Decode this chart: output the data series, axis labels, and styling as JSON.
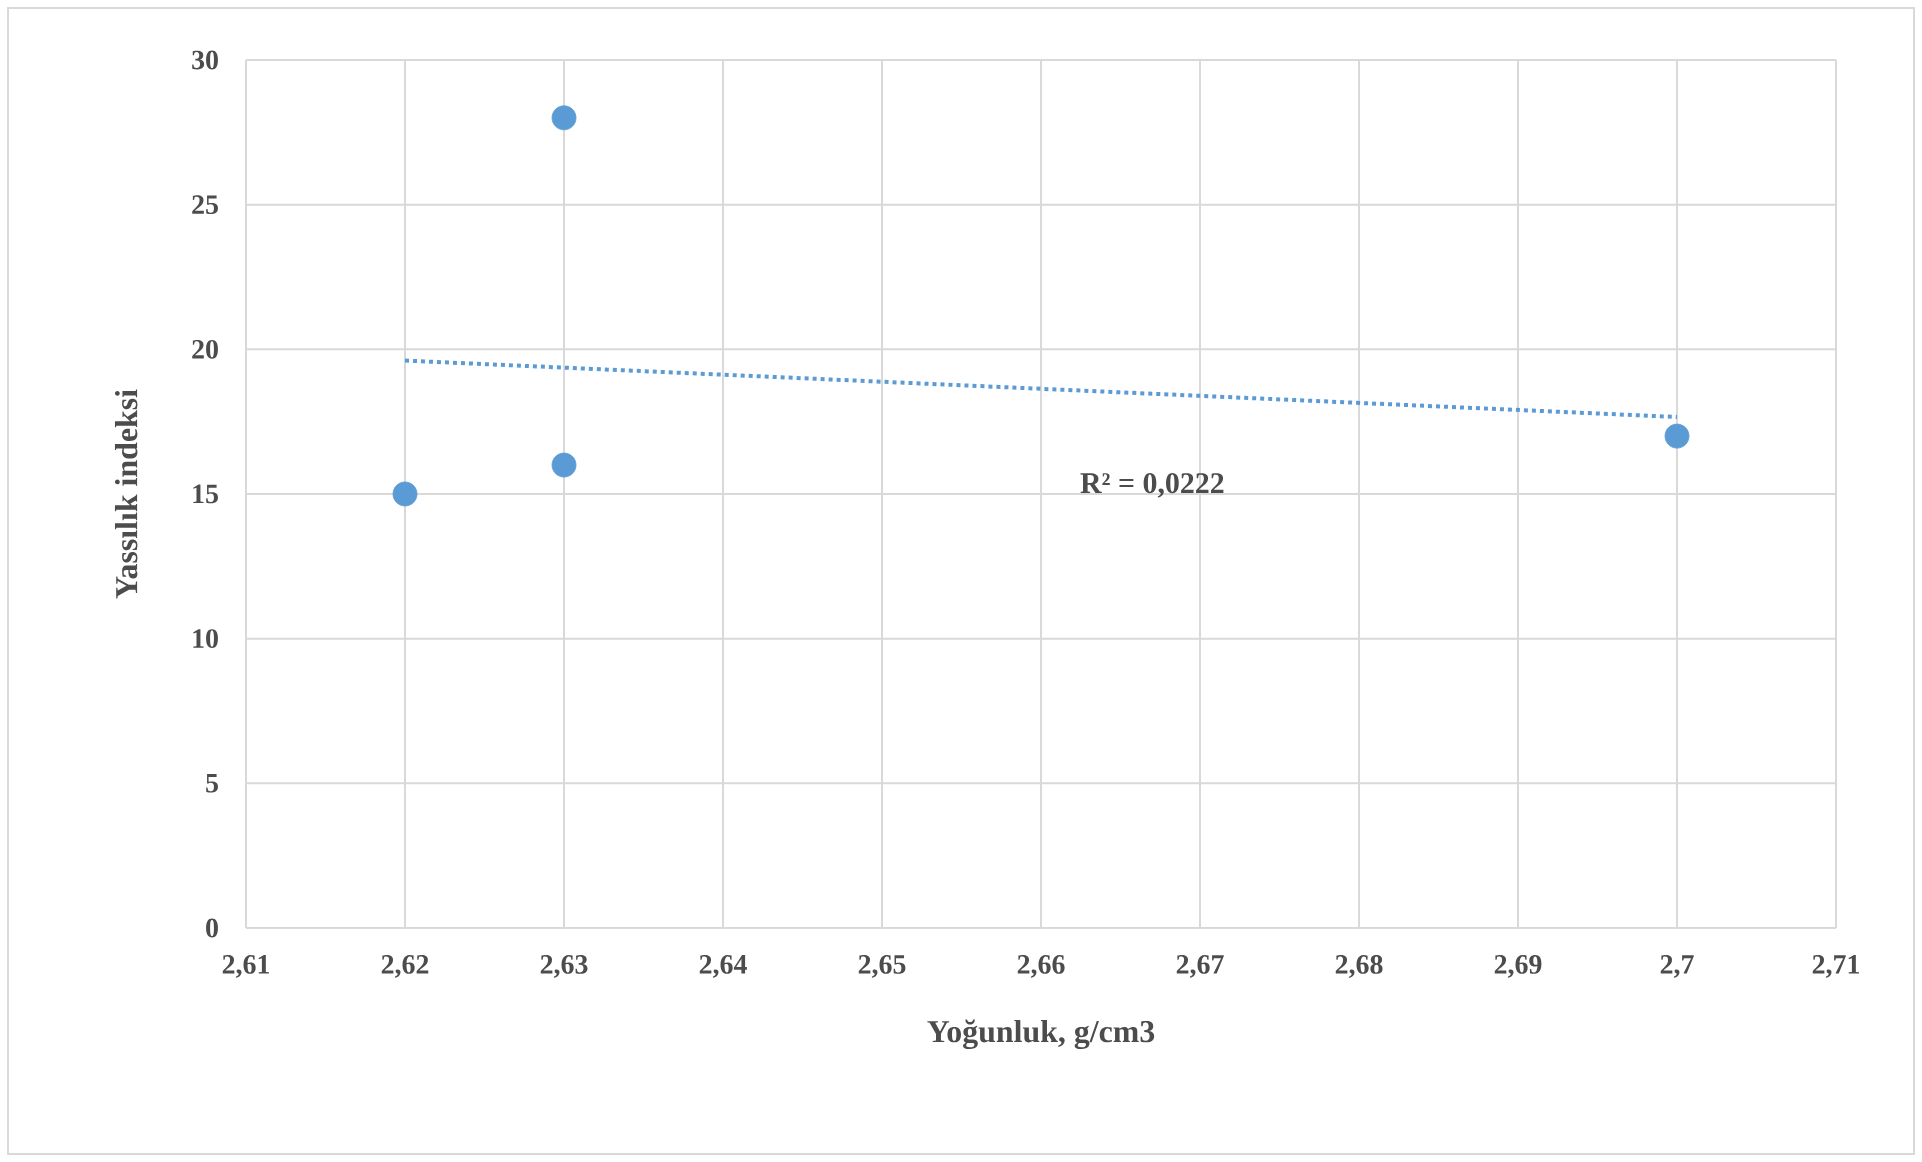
{
  "chart_data": {
    "type": "scatter",
    "xlabel": "Yoğunluk, g/cm3",
    "ylabel": "Yassılık indeksi",
    "x": [
      2.62,
      2.63,
      2.63,
      2.7
    ],
    "series": [
      {
        "color": "#5b9bd5",
        "marker": "circle",
        "values": [
          15,
          28,
          16,
          17
        ]
      },
      {
        "type": "line",
        "color": "#5b9bd5",
        "line_style": "dotted",
        "marker": "none",
        "x": [
          2.62,
          2.7
        ],
        "values": [
          19.61,
          17.66
        ]
      }
    ],
    "annotations": [
      "R² = 0,0222"
    ],
    "xlim": [
      2.61,
      2.71
    ],
    "ylim": [
      0,
      30
    ],
    "xticks": [
      {
        "value": 2.61,
        "label": "2,61"
      },
      {
        "value": 2.62,
        "label": "2,62"
      },
      {
        "value": 2.63,
        "label": "2,63"
      },
      {
        "value": 2.64,
        "label": "2,64"
      },
      {
        "value": 2.65,
        "label": "2,65"
      },
      {
        "value": 2.66,
        "label": "2,66"
      },
      {
        "value": 2.67,
        "label": "2,67"
      },
      {
        "value": 2.68,
        "label": "2,68"
      },
      {
        "value": 2.69,
        "label": "2,69"
      },
      {
        "value": 2.7,
        "label": "2,7"
      },
      {
        "value": 2.71,
        "label": "2,71"
      }
    ],
    "yticks": [
      0,
      5,
      10,
      15,
      20,
      25,
      30
    ],
    "grid": true
  }
}
